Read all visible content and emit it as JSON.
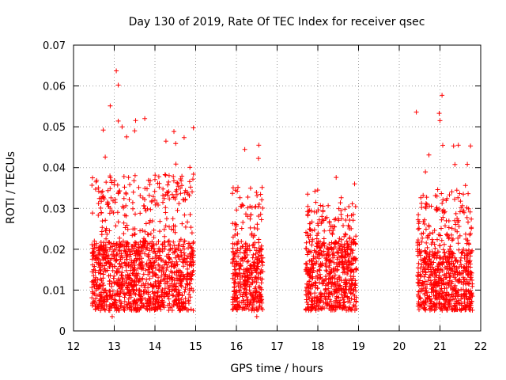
{
  "chart_data": {
    "type": "scatter",
    "title": "Day 130 of 2019, Rate Of TEC Index for receiver qsec",
    "xlabel": "GPS time / hours",
    "ylabel": "ROTI / TECUs",
    "xlim": [
      12,
      22
    ],
    "ylim": [
      0,
      0.07
    ],
    "x_ticks": [
      12,
      13,
      14,
      15,
      16,
      17,
      18,
      19,
      20,
      21,
      22
    ],
    "y_ticks": [
      0,
      0.01,
      0.02,
      0.03,
      0.04,
      0.05,
      0.06,
      0.07
    ],
    "x_tick_labels": [
      "12",
      "13",
      "14",
      "15",
      "16",
      "17",
      "18",
      "19",
      "20",
      "21",
      "22"
    ],
    "y_tick_labels": [
      "0",
      "0.01",
      "0.02",
      "0.03",
      "0.04",
      "0.05",
      "0.06",
      "0.07"
    ],
    "grid": true,
    "marker": "+",
    "color": "#ff0000",
    "clusters": [
      {
        "x_range": [
          12.45,
          14.95
        ],
        "typical_range": [
          0.005,
          0.022
        ],
        "sparse_max": 0.052
      },
      {
        "x_range": [
          15.9,
          16.65
        ],
        "typical_range": [
          0.005,
          0.022
        ],
        "sparse_max": 0.046
      },
      {
        "x_range": [
          17.7,
          18.95
        ],
        "typical_range": [
          0.005,
          0.022
        ],
        "sparse_max": 0.038
      },
      {
        "x_range": [
          20.45,
          21.8
        ],
        "typical_range": [
          0.005,
          0.02
        ],
        "sparse_max": 0.046
      }
    ],
    "notable_points": [
      {
        "x": 13.05,
        "y": 0.0637
      },
      {
        "x": 13.1,
        "y": 0.0602
      },
      {
        "x": 12.9,
        "y": 0.0551
      },
      {
        "x": 13.1,
        "y": 0.0514
      },
      {
        "x": 13.75,
        "y": 0.052
      },
      {
        "x": 13.5,
        "y": 0.049
      },
      {
        "x": 20.42,
        "y": 0.0536
      },
      {
        "x": 21.05,
        "y": 0.0577
      },
      {
        "x": 20.98,
        "y": 0.0533
      },
      {
        "x": 21.0,
        "y": 0.0515
      },
      {
        "x": 21.45,
        "y": 0.0455
      },
      {
        "x": 21.75,
        "y": 0.0453
      },
      {
        "x": 16.55,
        "y": 0.0455
      },
      {
        "x": 18.45,
        "y": 0.0376
      },
      {
        "x": 17.75,
        "y": 0.0335
      },
      {
        "x": 12.95,
        "y": 0.0035
      },
      {
        "x": 16.5,
        "y": 0.0035
      }
    ]
  }
}
